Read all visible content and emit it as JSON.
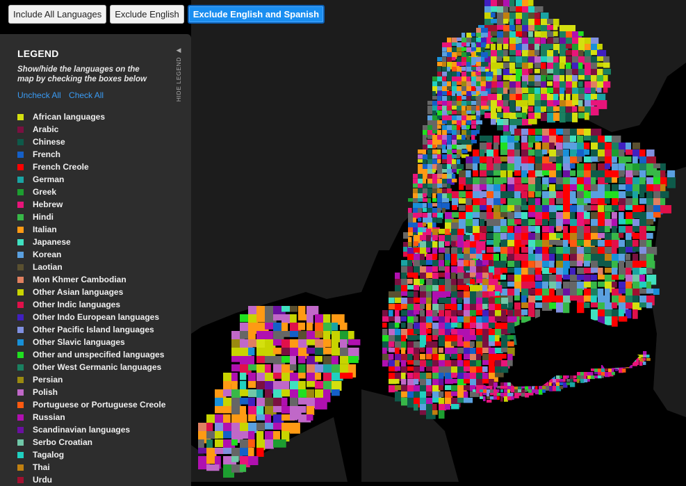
{
  "buttons": [
    {
      "label": "Include All Languages",
      "active": false
    },
    {
      "label": "Exclude English",
      "active": false
    },
    {
      "label": "Exclude English and Spanish",
      "active": true
    }
  ],
  "legend": {
    "title": "LEGEND",
    "subtitle": "Show/hide the languages on the map by checking the boxes below",
    "uncheck_all": "Uncheck All",
    "check_all": "Check All",
    "hide_label": "HIDE LEGEND",
    "items": [
      {
        "label": "African languages",
        "color": "#d4e00f"
      },
      {
        "label": "Arabic",
        "color": "#7a1040"
      },
      {
        "label": "Chinese",
        "color": "#0e5a4a"
      },
      {
        "label": "French",
        "color": "#1560c8"
      },
      {
        "label": "French Creole",
        "color": "#ff0000"
      },
      {
        "label": "German",
        "color": "#1aa3a3"
      },
      {
        "label": "Greek",
        "color": "#1d9e30"
      },
      {
        "label": "Hebrew",
        "color": "#e8147a"
      },
      {
        "label": "Hindi",
        "color": "#38b848"
      },
      {
        "label": "Italian",
        "color": "#ff9a14"
      },
      {
        "label": "Japanese",
        "color": "#40e0c0"
      },
      {
        "label": "Korean",
        "color": "#5aa0e0"
      },
      {
        "label": "Laotian",
        "color": "#5a5030"
      },
      {
        "label": "Mon Khmer Cambodian",
        "color": "#e08060"
      },
      {
        "label": "Other Asian languages",
        "color": "#c8d400"
      },
      {
        "label": "Other Indic languages",
        "color": "#e0104a"
      },
      {
        "label": "Other Indo European languages",
        "color": "#4020c0"
      },
      {
        "label": "Other Pacific Island languages",
        "color": "#8090e0"
      },
      {
        "label": "Other Slavic languages",
        "color": "#1890d8"
      },
      {
        "label": "Other and unspecified languages",
        "color": "#20e020"
      },
      {
        "label": "Other West Germanic languages",
        "color": "#1a8060"
      },
      {
        "label": "Persian",
        "color": "#9a8a10"
      },
      {
        "label": "Polish",
        "color": "#c068c8"
      },
      {
        "label": "Portuguese or Portuguese Creole",
        "color": "#ff5a10"
      },
      {
        "label": "Russian",
        "color": "#b010b0"
      },
      {
        "label": "Scandinavian languages",
        "color": "#6a10a0"
      },
      {
        "label": "Serbo Croatian",
        "color": "#70c8a8"
      },
      {
        "label": "Tagalog",
        "color": "#20d0c0"
      },
      {
        "label": "Thai",
        "color": "#c08010"
      },
      {
        "label": "Urdu",
        "color": "#a01030"
      }
    ]
  },
  "map": {
    "background_color": "#000000",
    "land_color": "#1c1c1c",
    "no_data_color": "#666666"
  }
}
